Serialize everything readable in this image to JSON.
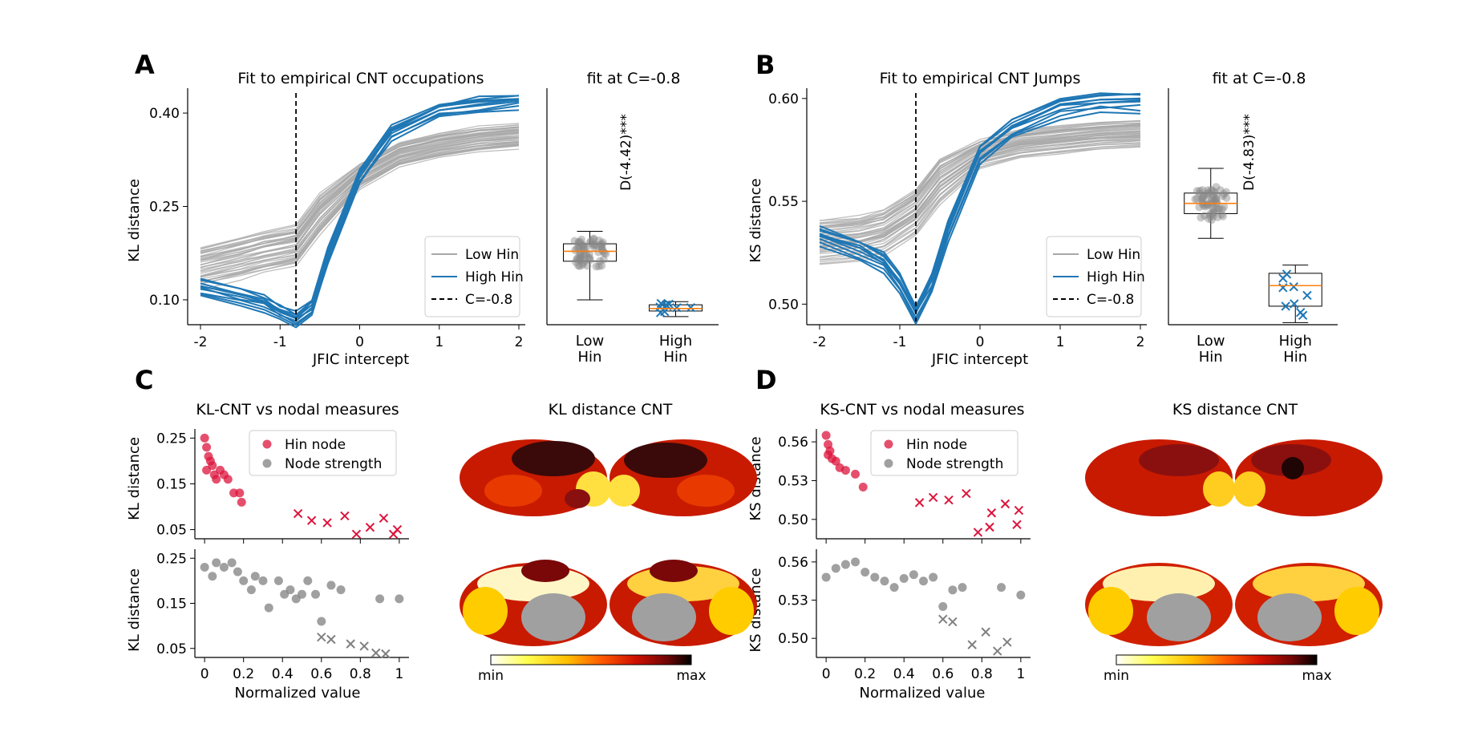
{
  "panels": {
    "A": {
      "letter": "A",
      "main_title": "Fit to empirical CNT occupations",
      "box_title": "fit at C=-0.8",
      "xlabel": "JFIC intercept",
      "ylabel": "KL distance",
      "significance": "D(-4.42)***"
    },
    "B": {
      "letter": "B",
      "main_title": "Fit to empirical CNT Jumps",
      "box_title": "fit at C=-0.8",
      "xlabel": "JFIC intercept",
      "ylabel": "KS distance",
      "significance": "D(-4.83)***"
    },
    "C": {
      "letter": "C",
      "scatter_title": "KL-CNT vs nodal measures",
      "brain_title": "KL distance CNT",
      "xlabel": "Normalized value",
      "ylabel_top": "KL distance",
      "ylabel_bottom": "KL distance",
      "colorbar_min": "min",
      "colorbar_max": "max"
    },
    "D": {
      "letter": "D",
      "scatter_title": "KS-CNT vs nodal measures",
      "brain_title": "KS distance CNT",
      "xlabel": "Normalized value",
      "ylabel_top": "KS distance",
      "ylabel_bottom": "KS distance",
      "colorbar_min": "min",
      "colorbar_max": "max"
    }
  },
  "legend_lines": [
    "Low Hin",
    "High Hin",
    "C=-0.8"
  ],
  "legend_scatter": [
    "Hin node",
    "Node strength"
  ],
  "colors": {
    "low_hin": "#a8a8a8",
    "high_hin": "#1f77b4",
    "hin_node": "#dc143c",
    "node_strength": "#808080",
    "median": "#ff7f0e"
  },
  "chart_data": [
    {
      "id": "A-lines",
      "type": "line",
      "title": "Fit to empirical CNT occupations",
      "xlabel": "JFIC intercept",
      "ylabel": "KL distance",
      "xlim": [
        -2,
        2
      ],
      "ylim": [
        0.06,
        0.44
      ],
      "xticks": [
        -2,
        -1,
        0,
        1,
        2
      ],
      "yticks": [
        "0.10",
        "0.25",
        "0.40"
      ],
      "vline": -0.8,
      "legend_placement": "lower-right",
      "series": [
        {
          "name": "Low Hin",
          "x": [
            -2,
            -1.5,
            -1.2,
            -0.8,
            -0.5,
            0,
            0.5,
            1,
            1.5,
            2
          ],
          "y": [
            0.155,
            0.17,
            0.18,
            0.19,
            0.24,
            0.3,
            0.335,
            0.35,
            0.36,
            0.365
          ]
        },
        {
          "name": "High Hin",
          "x": [
            -2,
            -1.5,
            -1.2,
            -1.0,
            -0.8,
            -0.6,
            -0.4,
            0,
            0.4,
            1,
            1.5,
            2
          ],
          "y": [
            0.12,
            0.105,
            0.095,
            0.08,
            0.07,
            0.09,
            0.17,
            0.3,
            0.37,
            0.405,
            0.415,
            0.42
          ]
        }
      ]
    },
    {
      "id": "A-box",
      "type": "box",
      "title": "fit at C=-0.8",
      "categories": [
        "Low\nHin",
        "High\nHin"
      ],
      "box": [
        {
          "min": 0.1,
          "q1": 0.162,
          "median": 0.178,
          "q3": 0.19,
          "max": 0.21
        },
        {
          "min": 0.073,
          "q1": 0.082,
          "median": 0.086,
          "q3": 0.092,
          "max": 0.097
        }
      ],
      "annotation": "D(-4.42)***"
    },
    {
      "id": "B-lines",
      "type": "line",
      "title": "Fit to empirical CNT Jumps",
      "xlabel": "JFIC intercept",
      "ylabel": "KS distance",
      "xlim": [
        -2,
        2
      ],
      "ylim": [
        0.49,
        0.605
      ],
      "xticks": [
        -2,
        -1,
        0,
        1,
        2
      ],
      "yticks": [
        "0.50",
        "0.55",
        "0.60"
      ],
      "vline": -0.8,
      "legend_placement": "lower-right",
      "series": [
        {
          "name": "Low Hin",
          "x": [
            -2,
            -1.5,
            -1.2,
            -0.8,
            -0.5,
            0,
            0.5,
            1,
            1.5,
            2
          ],
          "y": [
            0.53,
            0.532,
            0.535,
            0.545,
            0.56,
            0.573,
            0.578,
            0.58,
            0.582,
            0.583
          ]
        },
        {
          "name": "High Hin",
          "x": [
            -2,
            -1.5,
            -1.2,
            -1.0,
            -0.8,
            -0.6,
            -0.4,
            0,
            0.4,
            1,
            1.5,
            2
          ],
          "y": [
            0.533,
            0.526,
            0.52,
            0.51,
            0.495,
            0.51,
            0.535,
            0.573,
            0.585,
            0.595,
            0.598,
            0.598
          ]
        }
      ]
    },
    {
      "id": "B-box",
      "type": "box",
      "title": "fit at C=-0.8",
      "categories": [
        "Low\nHin",
        "High\nHin"
      ],
      "box": [
        {
          "min": 0.532,
          "q1": 0.544,
          "median": 0.549,
          "q3": 0.554,
          "max": 0.566
        },
        {
          "min": 0.491,
          "q1": 0.499,
          "median": 0.509,
          "q3": 0.515,
          "max": 0.519
        }
      ],
      "annotation": "D(-4.83)***"
    },
    {
      "id": "C-top",
      "type": "scatter",
      "title": "KL-CNT vs nodal measures",
      "ylabel": "KL distance",
      "xlim": [
        -0.05,
        1.05
      ],
      "ylim": [
        0.03,
        0.27
      ],
      "yticks": [
        "0.05",
        "0.15",
        "0.25"
      ],
      "series": [
        {
          "name": "Hin node",
          "x": [
            0,
            0.01,
            0.02,
            0.03,
            0.01,
            0.04,
            0.05,
            0.06,
            0.08,
            0.1,
            0.12,
            0.15,
            0.18,
            0.19
          ],
          "y": [
            0.25,
            0.23,
            0.21,
            0.2,
            0.18,
            0.19,
            0.17,
            0.16,
            0.18,
            0.17,
            0.16,
            0.13,
            0.13,
            0.11
          ]
        },
        {
          "name": "High Hin (x)",
          "x": [
            0.48,
            0.55,
            0.63,
            0.72,
            0.78,
            0.85,
            0.92,
            0.99,
            0.97
          ],
          "y": [
            0.085,
            0.07,
            0.065,
            0.08,
            0.04,
            0.055,
            0.075,
            0.05,
            0.04
          ]
        }
      ]
    },
    {
      "id": "C-bottom",
      "type": "scatter",
      "xlabel": "Normalized value",
      "ylabel": "KL distance",
      "xlim": [
        -0.05,
        1.05
      ],
      "ylim": [
        0.03,
        0.27
      ],
      "xticks": [
        "0",
        "0.2",
        "0.4",
        "0.6",
        "0.8",
        "1"
      ],
      "yticks": [
        "0.05",
        "0.15",
        "0.25"
      ],
      "series": [
        {
          "name": "Node strength",
          "x": [
            0,
            0.04,
            0.06,
            0.1,
            0.14,
            0.17,
            0.2,
            0.24,
            0.26,
            0.3,
            0.33,
            0.38,
            0.41,
            0.44,
            0.47,
            0.5,
            0.53,
            0.57,
            0.6,
            0.65,
            0.7,
            0.9,
            1.0
          ],
          "y": [
            0.23,
            0.21,
            0.24,
            0.23,
            0.24,
            0.22,
            0.2,
            0.18,
            0.21,
            0.2,
            0.14,
            0.2,
            0.17,
            0.18,
            0.16,
            0.17,
            0.2,
            0.17,
            0.11,
            0.19,
            0.18,
            0.16,
            0.16
          ]
        },
        {
          "name": "High Hin (x)",
          "x": [
            0.6,
            0.65,
            0.75,
            0.82,
            0.88,
            0.93
          ],
          "y": [
            0.075,
            0.07,
            0.06,
            0.055,
            0.04,
            0.038
          ]
        }
      ]
    },
    {
      "id": "D-top",
      "type": "scatter",
      "title": "KS-CNT vs nodal measures",
      "ylabel": "KS distance",
      "xlim": [
        -0.05,
        1.05
      ],
      "ylim": [
        0.485,
        0.57
      ],
      "yticks": [
        "0.50",
        "0.53",
        "0.56"
      ],
      "series": [
        {
          "name": "Hin node",
          "x": [
            0,
            0.01,
            0.02,
            0.03,
            0.01,
            0.05,
            0.07,
            0.1,
            0.15,
            0.19
          ],
          "y": [
            0.565,
            0.558,
            0.553,
            0.547,
            0.55,
            0.545,
            0.54,
            0.538,
            0.535,
            0.525
          ]
        },
        {
          "name": "High Hin (x)",
          "x": [
            0.48,
            0.55,
            0.63,
            0.72,
            0.78,
            0.85,
            0.92,
            0.99,
            0.84,
            0.98
          ],
          "y": [
            0.513,
            0.517,
            0.515,
            0.52,
            0.49,
            0.505,
            0.512,
            0.507,
            0.494,
            0.496
          ]
        }
      ]
    },
    {
      "id": "D-bottom",
      "type": "scatter",
      "xlabel": "Normalized value",
      "ylabel": "KS distance",
      "xlim": [
        -0.05,
        1.05
      ],
      "ylim": [
        0.485,
        0.57
      ],
      "xticks": [
        "0",
        "0.2",
        "0.4",
        "0.6",
        "0.8",
        "1"
      ],
      "yticks": [
        "0.50",
        "0.53",
        "0.56"
      ],
      "series": [
        {
          "name": "Node strength",
          "x": [
            0,
            0.05,
            0.1,
            0.15,
            0.2,
            0.25,
            0.3,
            0.35,
            0.4,
            0.45,
            0.5,
            0.55,
            0.6,
            0.65,
            0.7,
            0.9,
            1.0
          ],
          "y": [
            0.548,
            0.555,
            0.558,
            0.56,
            0.552,
            0.548,
            0.545,
            0.54,
            0.547,
            0.55,
            0.545,
            0.548,
            0.525,
            0.538,
            0.54,
            0.54,
            0.534
          ]
        },
        {
          "name": "High Hin (x)",
          "x": [
            0.6,
            0.65,
            0.75,
            0.82,
            0.88,
            0.93
          ],
          "y": [
            0.515,
            0.513,
            0.495,
            0.505,
            0.49,
            0.497
          ]
        }
      ]
    }
  ]
}
